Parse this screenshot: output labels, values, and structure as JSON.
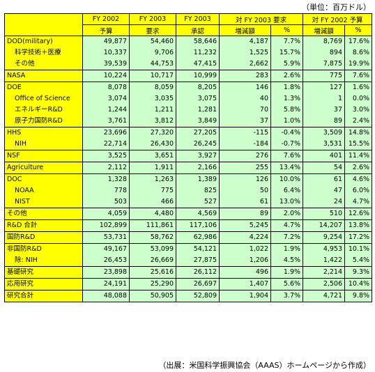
{
  "unit_note": "（単位：百万ドル）",
  "source_note": "（出展：米国科学振興協会（AAAS）ホームページから作成）",
  "header": {
    "top": [
      "FY 2002",
      "FY 2003",
      "FY 2003",
      "対 FY 2003 要求",
      "対 FY 2002 予算"
    ],
    "sub": [
      "予算",
      "要求",
      "承認",
      "増減額",
      "%",
      "増減額",
      "%"
    ]
  },
  "groups": [
    {
      "rows": [
        {
          "label": "DOD(military)",
          "indent": false,
          "values": [
            "49,877",
            "54,460",
            "58,646",
            "4,187",
            "7.7%",
            "8,769",
            "17.6%"
          ]
        },
        {
          "label": "科学技術＋医療",
          "indent": true,
          "values": [
            "10,337",
            "9,706",
            "11,232",
            "1,525",
            "15.7%",
            "894",
            "8.6%"
          ]
        },
        {
          "label": "その他",
          "indent": true,
          "values": [
            "39,539",
            "44,753",
            "47,415",
            "2,662",
            "5.9%",
            "7,875",
            "19.9%"
          ]
        }
      ]
    },
    {
      "rows": [
        {
          "label": "NASA",
          "indent": false,
          "values": [
            "10,224",
            "10,717",
            "10,999",
            "283",
            "2.6%",
            "775",
            "7.6%"
          ]
        }
      ]
    },
    {
      "rows": [
        {
          "label": "DOE",
          "indent": false,
          "values": [
            "8,078",
            "8,059",
            "8,205",
            "146",
            "1.8%",
            "127",
            "1.6%"
          ]
        },
        {
          "label": "Office of Science",
          "indent": true,
          "values": [
            "3,074",
            "3,035",
            "3,075",
            "40",
            "1.3%",
            "1",
            "0.0%"
          ]
        },
        {
          "label": "エネルギーR&D",
          "indent": true,
          "values": [
            "1,244",
            "1,211",
            "1,281",
            "70",
            "5.8%",
            "37",
            "3.0%"
          ]
        },
        {
          "label": "原子力国防R&D",
          "indent": true,
          "values": [
            "3,761",
            "3,812",
            "3,849",
            "37",
            "1.0%",
            "89",
            "2.4%"
          ]
        }
      ]
    },
    {
      "rows": [
        {
          "label": "HHS",
          "indent": false,
          "values": [
            "23,696",
            "27,320",
            "27,205",
            "-115",
            "-0.4%",
            "3,509",
            "14.8%"
          ]
        },
        {
          "label": "NIH",
          "indent": true,
          "values": [
            "22,714",
            "26,430",
            "26,245",
            "-184",
            "-0.7%",
            "3,531",
            "15.5%"
          ]
        }
      ]
    },
    {
      "rows": [
        {
          "label": "NSF",
          "indent": false,
          "values": [
            "3,525",
            "3,651",
            "3,927",
            "276",
            "7.6%",
            "401",
            "11.4%"
          ]
        }
      ]
    },
    {
      "rows": [
        {
          "label": "Agriculture",
          "indent": false,
          "values": [
            "2,112",
            "1,911",
            "2,166",
            "255",
            "13.4%",
            "54",
            "2.6%"
          ]
        }
      ]
    },
    {
      "rows": [
        {
          "label": "DOC",
          "indent": false,
          "values": [
            "1,328",
            "1,263",
            "1,389",
            "126",
            "10.0%",
            "61",
            "4.6%"
          ]
        },
        {
          "label": "NOAA",
          "indent": true,
          "values": [
            "778",
            "775",
            "825",
            "50",
            "6.4%",
            "47",
            "6.0%"
          ]
        },
        {
          "label": "NIST",
          "indent": true,
          "values": [
            "503",
            "466",
            "527",
            "61",
            "13.0%",
            "24",
            "4.7%"
          ]
        }
      ]
    },
    {
      "rows": [
        {
          "label": "その他",
          "indent": false,
          "values": [
            "4,059",
            "4,480",
            "4,569",
            "89",
            "2.0%",
            "510",
            "12.6%"
          ]
        }
      ]
    },
    {
      "rows": [
        {
          "label": "R&D 合計",
          "indent": false,
          "values": [
            "102,899",
            "111,861",
            "117,106",
            "5,245",
            "4.7%",
            "14,207",
            "13.8%"
          ]
        }
      ]
    },
    {
      "rows": [
        {
          "label": "国防R&D",
          "indent": false,
          "values": [
            "53,731",
            "58,762",
            "62,986",
            "4,224",
            "7.2%",
            "9,254",
            "17.2%"
          ]
        }
      ]
    },
    {
      "rows": [
        {
          "label": "非国防R&D",
          "indent": false,
          "values": [
            "49,167",
            "53,099",
            "54,121",
            "1,022",
            "1.9%",
            "4,953",
            "10.1%"
          ]
        },
        {
          "label": "除: NIH",
          "indent": true,
          "values": [
            "26,453",
            "26,669",
            "27,875",
            "1,206",
            "4.5%",
            "1,422",
            "5.4%"
          ]
        }
      ]
    },
    {
      "rows": [
        {
          "label": "基礎研究",
          "indent": false,
          "values": [
            "23,898",
            "25,616",
            "26,112",
            "496",
            "1.9%",
            "2,214",
            "9.3%"
          ]
        }
      ]
    },
    {
      "rows": [
        {
          "label": "応用研究",
          "indent": false,
          "values": [
            "24,191",
            "25,290",
            "26,697",
            "1,407",
            "5.6%",
            "2,506",
            "10.4%"
          ]
        }
      ]
    },
    {
      "rows": [
        {
          "label": "研究合計",
          "indent": false,
          "values": [
            "48,088",
            "50,905",
            "52,809",
            "1,904",
            "3.7%",
            "4,721",
            "9.8%"
          ]
        }
      ]
    }
  ]
}
